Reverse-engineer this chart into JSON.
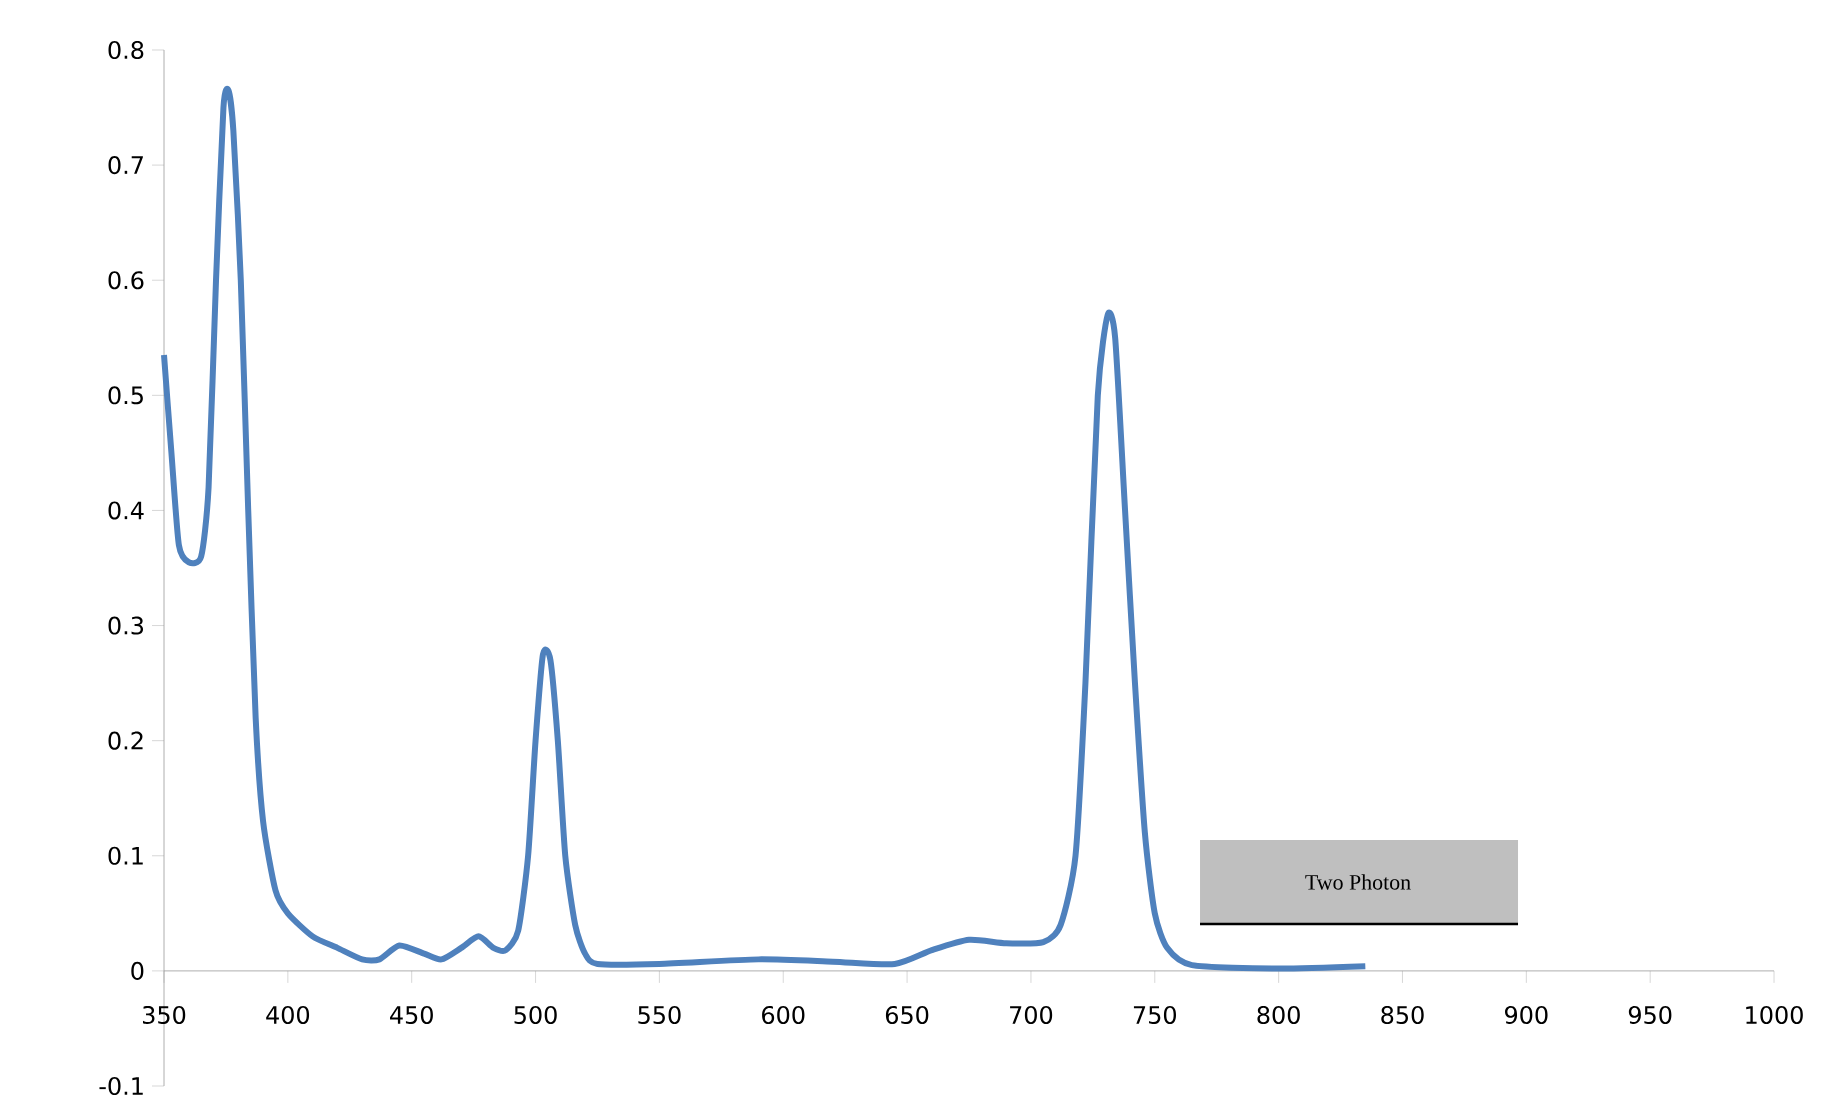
{
  "chart_data": {
    "type": "line",
    "xlim": [
      350,
      1000
    ],
    "ylim": [
      -0.1,
      0.8
    ],
    "xticks": [
      350,
      400,
      450,
      500,
      550,
      600,
      650,
      700,
      750,
      800,
      850,
      900,
      950,
      1000
    ],
    "yticks": [
      -0.1,
      0,
      0.1,
      0.2,
      0.3,
      0.4,
      0.5,
      0.6,
      0.7,
      0.8
    ],
    "marker": "none",
    "line_style": "solid",
    "annotations": [
      "Two Photon"
    ],
    "series": [
      {
        "color": "#4f81bd",
        "x": [
          350,
          353,
          356,
          360,
          365,
          368,
          371,
          374,
          376,
          378,
          381,
          384,
          387,
          390,
          395,
          400,
          410,
          420,
          430,
          437,
          445,
          455,
          462,
          470,
          477,
          483,
          488,
          493,
          497,
          500,
          503,
          506,
          509,
          512,
          516,
          520,
          525,
          550,
          590,
          620,
          645,
          660,
          675,
          690,
          705,
          712,
          718,
          722,
          727,
          731,
          734,
          738,
          742,
          746,
          750,
          755,
          765,
          800,
          835
        ],
        "values": [
          0.535,
          0.45,
          0.37,
          0.355,
          0.36,
          0.42,
          0.6,
          0.75,
          0.765,
          0.73,
          0.6,
          0.4,
          0.22,
          0.13,
          0.07,
          0.05,
          0.03,
          0.02,
          0.01,
          0.01,
          0.022,
          0.015,
          0.01,
          0.02,
          0.03,
          0.02,
          0.018,
          0.035,
          0.1,
          0.2,
          0.275,
          0.27,
          0.2,
          0.1,
          0.04,
          0.015,
          0.006,
          0.006,
          0.01,
          0.008,
          0.006,
          0.018,
          0.027,
          0.024,
          0.025,
          0.04,
          0.1,
          0.25,
          0.5,
          0.57,
          0.55,
          0.4,
          0.25,
          0.12,
          0.05,
          0.02,
          0.005,
          0.002,
          0.004
        ]
      }
    ]
  }
}
